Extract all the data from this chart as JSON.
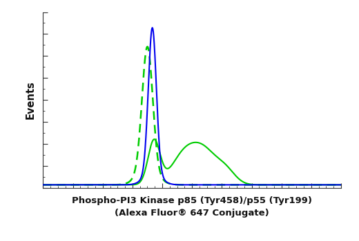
{
  "xlabel_line1": "Phospho-PI3 Kinase p85 (Tyr458)/p55 (Tyr199)",
  "xlabel_line2": "(Alexa Fluor® 647 Conjugate)",
  "ylabel": "Events",
  "bg_color": "#ffffff",
  "plot_bg_color": "#ffffff",
  "blue_color": "#0000ee",
  "green_color": "#00cc00",
  "figsize": [
    5.2,
    3.5
  ],
  "dpi": 100
}
